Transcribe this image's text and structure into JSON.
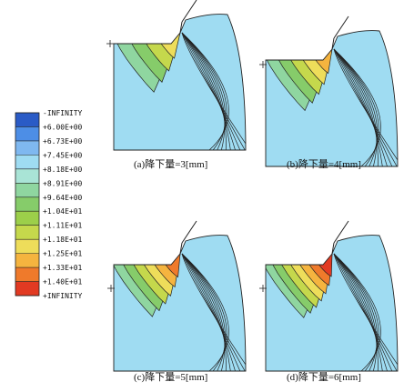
{
  "legend": {
    "labels": [
      "-INFINITY",
      "+6.00E+00",
      "+6.73E+00",
      "+7.45E+00",
      "+8.18E+00",
      "+8.91E+00",
      "+9.64E+00",
      "+1.04E+01",
      "+1.11E+01",
      "+1.18E+01",
      "+1.25E+01",
      "+1.33E+01",
      "+1.40E+01",
      "+INFINITY"
    ],
    "colors": [
      "#2a5bc6",
      "#4d8ee6",
      "#7fb8f0",
      "#9fdcf2",
      "#a9e4d6",
      "#8fd6a0",
      "#86cc6a",
      "#9ccf4a",
      "#c5d84c",
      "#eedd5a",
      "#f5b43f",
      "#ef7a2b",
      "#e23a22"
    ]
  },
  "panels": [
    {
      "caption": "(a)降下量=3[mm]",
      "fill": [
        "#9fdcf2",
        "#8fd6a0",
        "#86cc6a",
        "#c5d84c",
        "#eedd5a"
      ]
    },
    {
      "caption": "(b)降下量=4[mm]",
      "fill": [
        "#9fdcf2",
        "#8fd6a0",
        "#86cc6a",
        "#c5d84c",
        "#eedd5a",
        "#f5b43f"
      ]
    },
    {
      "caption": "(c)降下量=5[mm]",
      "fill": [
        "#9fdcf2",
        "#8fd6a0",
        "#86cc6a",
        "#c5d84c",
        "#eedd5a",
        "#f5b43f",
        "#ef7a2b"
      ]
    },
    {
      "caption": "(d)降下量=6[mm]",
      "fill": [
        "#9fdcf2",
        "#8fd6a0",
        "#86cc6a",
        "#c5d84c",
        "#eedd5a",
        "#f5b43f",
        "#ef7a2b",
        "#e23a22"
      ]
    }
  ]
}
